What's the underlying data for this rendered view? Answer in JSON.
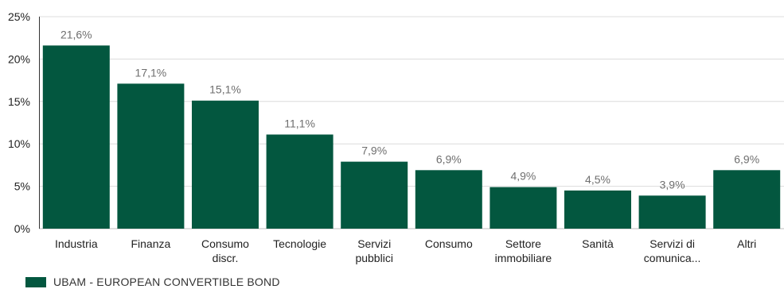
{
  "chart_data": {
    "type": "bar",
    "categories": [
      [
        "Industria"
      ],
      [
        "Finanza"
      ],
      [
        "Consumo",
        "discr."
      ],
      [
        "Tecnologie"
      ],
      [
        "Servizi",
        "pubblici"
      ],
      [
        "Consumo"
      ],
      [
        "Settore",
        "immobiliare"
      ],
      [
        "Sanità"
      ],
      [
        "Servizi di",
        "comunica..."
      ],
      [
        "Altri"
      ]
    ],
    "series": [
      {
        "name": "UBAM - EUROPEAN CONVERTIBLE BOND",
        "values": [
          21.6,
          17.1,
          15.1,
          11.1,
          7.9,
          6.9,
          4.9,
          4.5,
          3.9,
          6.9
        ],
        "labels": [
          "21,6%",
          "17,1%",
          "15,1%",
          "11,1%",
          "7,9%",
          "6,9%",
          "4,9%",
          "4,5%",
          "3,9%",
          "6,9%"
        ],
        "color": "#03573f"
      }
    ],
    "yticks": [
      "0%",
      "5%",
      "10%",
      "15%",
      "20%",
      "25%"
    ],
    "ylim": [
      0,
      25
    ],
    "ystep": 5,
    "grid": true,
    "grid_color": "#dcdcdc",
    "legend_position": "bottom-left",
    "title": "",
    "xlabel": "",
    "ylabel": ""
  }
}
